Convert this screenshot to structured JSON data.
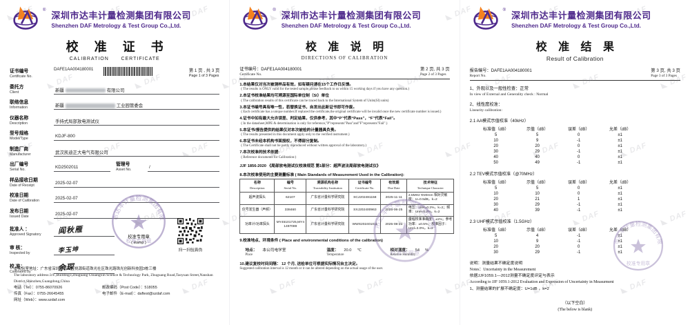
{
  "brand": {
    "company_cn": "深圳市达丰计量检测集团有限公司",
    "company_en": "Shenzhen DAF Metrology & Test Group Co.,Ltd.",
    "registered": "®",
    "brand_purple": "#4f2a8c",
    "brand_orange": "#f5821f"
  },
  "watermark": "◣ DAF",
  "stamp": {
    "ring_text": "深圳市达丰计量检测集团有限公司",
    "name": "校准专用章"
  },
  "page1": {
    "title_cn": "校 准 证 书",
    "title_en": "CALIBRATION      CERTIFICATE",
    "cert": {
      "label_cn": "证书编号",
      "label_en": "Certificate No.",
      "value": "DAFE1AA004180001"
    },
    "page_cn": "第 1 页 , 共 3 页",
    "page_en": "Page 1 of 3 Pages",
    "rows": {
      "client": {
        "label_cn": "委托方",
        "label_en": "Client",
        "prefix": "新疆",
        "suffix": "有限公司"
      },
      "info": {
        "label_cn": "联络信息",
        "label_en": "Information",
        "prefix": "新疆",
        "suffix": "工业园管委会"
      },
      "description": {
        "label_cn": "仪器名称",
        "label_en": "Description",
        "value": "手持式局部放电测试仪"
      },
      "model": {
        "label_cn": "型号规格",
        "label_en": "Model/Type",
        "value": "KDJF-800"
      },
      "manufacturer": {
        "label_cn": "制造厂商",
        "label_en": "Manufacturer",
        "value": "武汉凯迪正大电气有限公司"
      },
      "serial": {
        "label_cn": "出厂编号",
        "label_en": "Serial No.",
        "value": "KD2502011"
      },
      "asset": {
        "label_cn": "管理号",
        "label_en": "Asset No.",
        "value": "/"
      },
      "receipt": {
        "label_cn": "样品接收日期",
        "label_en": "Date of Receipt",
        "value": "2025-02-07"
      },
      "cal_date": {
        "label_cn": "校准日期",
        "label_en": "Date of Calibration",
        "value": "2025-02-07"
      },
      "issued": {
        "label_cn": "发布日期",
        "label_en": "Issued Date",
        "value": "2025-02-07"
      },
      "approved": {
        "label_cn": "批准人 ：",
        "label_en": "Approved Signatory",
        "signature": "阎秋雁"
      },
      "inspected": {
        "label_cn": "审 核：",
        "label_en": "Inspected by",
        "signature": "李玉坤"
      },
      "calibrated": {
        "label_cn": "校 准：",
        "label_en": "Calibrated by",
        "signature": "余琛"
      }
    },
    "stamp_label_cn": "校准专用章",
    "stamp_label_en": "( stamp )",
    "qr_caption": "扫一扫验真伪",
    "footer": {
      "addr_cn": "本实验室地址：广东省深圳市南山区桃源街道珠光社区珠光路珠光创新科技园3栋三楼",
      "addr_en": "The laboratory address:3/F.,Building3,Zhuguang Chuangxin Science & Technology Park, Zhuguang Road,Taoyuan Street,Nanshan District,Shenzhen,Guangdong,China",
      "tel": "电话（Tel）：0755-86070926",
      "post": "邮政编码（Post Code）：518055",
      "fax": "传真（Fax）：0755-26645455",
      "email": "电子邮件（E-mail）：daftest@szdaf.com",
      "web": "网址（Web）：www.szdaf.com"
    }
  },
  "page2": {
    "title_cn": "校 准 说 明",
    "title_en": "DIRECTIONS OF CALIBRATION",
    "cert_label_cn": "证书编号：",
    "cert_no": "DAFE1AA004180001",
    "cert_label_en": "Certificate No.",
    "page_cn": "第 2 页, 共 3 页",
    "page_en": "Page 2 of 3 Pages",
    "items": [
      {
        "cn": "1.本结果仅对当次被测样品有效，如有疑问请在15个工作日反馈。",
        "en": "( The results is ONLY valid for the tested sample,please feedback to us within 15 working days if you have any question.)"
      },
      {
        "cn": "2.本证书校准结果均可溯源至国际单位制（SI）单位",
        "en": "( The calibration results of this certificate can be traced back to the International System of Units(SI) units)"
      },
      {
        "cn": "3.本证书编号具有唯一性，若替换证书，自发出此新证书即可作废。",
        "en": "( Each certificate has a unique number.If replaced the certificate,the original certificate will be invalid once the new certificate number is issued.)"
      },
      {
        "cn": "4.证书中如有最大允许误差、判定结果，仅供参考，其中“P”代表“Pass”，“F”代表“Fail”。",
        "en": "( In the datasheet,MPE & determination is only for reference,\"P\"represents\"Pass\"and\"F\"represents\"Fail\".)"
      },
      {
        "cn": "5.本证书/报告提供的结果仅对本次被检的计量器具负责。",
        "en": "( The results presented in this document apply only to the verified instrument.)"
      },
      {
        "cn": "6.本证书未经本机构书面授权，不得部分复制。",
        "en": "( The Certificate shall not be partly reproduced without written approval of the laboratory.)"
      },
      {
        "cn": "7.本次校准的技术依据:",
        "en": "( Reference documents for Calibration:)"
      }
    ],
    "ref_doc": "JJF 1856-2020 《局部放电测试仪校准规范 第1部分：超声波法局部放电测试仪》",
    "standards": {
      "heading": "8.本次校准使用的主要测量标准 ( Main Standards of Measurement Used in the Calibration):",
      "headers": [
        {
          "cn": "名称",
          "en": "Description"
        },
        {
          "cn": "编号",
          "en": "Serial No."
        },
        {
          "cn": "溯源机构名称",
          "en": "Traceability Institution"
        },
        {
          "cn": "证书编号",
          "en": "Certificate No."
        },
        {
          "cn": "有效期",
          "en": "Due Date"
        },
        {
          "cn": "技术特征",
          "en": "Technique Character"
        }
      ],
      "rows": [
        [
          "超声波探头",
          "62107",
          "广东省计量科学研究院",
          "SCJ202481158",
          "2025-11-11",
          "2.5MHz Φ20mm 相对灵敏度：U=0.5dB，k=2"
        ],
        [
          "信号发生器（声频）",
          "338460",
          "广东省计量科学研究院",
          "SXJ202400963",
          "2025-06-25",
          "电压：Urel=0.2%，k=2；频率：Urel=0.2%，k=2"
        ],
        [
          "功率计/功率探头",
          "MY45101725,MY41497089",
          "广东省计量科学研究院",
          "WWS202401011",
          "2025-08-21",
          "量程校准准确度：±1%；参考功率：±0.5%；校准因子：Urel=3.0%，k=2"
        ]
      ]
    },
    "env": {
      "heading": "9.校准地点、环境条件 ( Place and environmental conditions of the calibration)",
      "place_cn": "地点：",
      "place": "本公司电学室",
      "place_en": "Place",
      "temp_cn": "温度：",
      "temp": "20.0",
      "temp_unit": "℃",
      "temp_en": "Temperature",
      "rh_cn": "相对湿度：",
      "rh": "54",
      "rh_unit": "%",
      "rh_en": "Relative Humidity"
    },
    "interval_cn": "10.建议复校时间间隔：  12  个月, 送检单位可根据实际情况自主决定。",
    "interval_en": "Suggested calibration interval is  12  month or it can be altered depending on the actual usage of the user."
  },
  "page3": {
    "title_cn": "校 准 结 果",
    "title_en": "Result of Calibration",
    "report_label_cn": "报告编号：",
    "report_no": "DAFE1AA004180001",
    "report_label_en": "Report No.",
    "page_cn": "第 3 页, 共 3 页",
    "page_en": "Page 3 of 3 Pages",
    "sec1_cn": "1、外观以及一般性检查：正常",
    "sec1_en": "In view of External and Generality check : Normal",
    "sec2_cn": "2、线性度校准：",
    "sec2_en": "Linearity calibration:",
    "cols": [
      "标准值（dB）",
      "示值（dB）",
      "误差（dB）",
      "允差（dB）"
    ],
    "tables": [
      {
        "title": "2.1 AA模式示值校准（40kHz）",
        "rows": [
          [
            "5",
            "5",
            "0",
            "±1"
          ],
          [
            "10",
            "9",
            "-1",
            "±1"
          ],
          [
            "20",
            "20",
            "0",
            "±1"
          ],
          [
            "30",
            "29",
            "-1",
            "±1"
          ],
          [
            "40",
            "40",
            "0",
            "±1"
          ],
          [
            "50",
            "49",
            "-1",
            "±1"
          ]
        ]
      },
      {
        "title": "2.2 TEV模式示值校准（@70MHz）",
        "rows": [
          [
            "5",
            "5",
            "0",
            "±1"
          ],
          [
            "10",
            "10",
            "0",
            "±1"
          ],
          [
            "20",
            "21",
            "1",
            "±1"
          ],
          [
            "30",
            "29",
            "-1",
            "±1"
          ],
          [
            "40",
            "39",
            "-1",
            "±1"
          ]
        ]
      },
      {
        "title": "2.3 UHF模式示值校准（1.5GHz）",
        "rows": [
          [
            "5",
            "4",
            "-1",
            "±1"
          ],
          [
            "10",
            "9",
            "-1",
            "±1"
          ],
          [
            "20",
            "20",
            "0",
            "±1"
          ],
          [
            "30",
            "29",
            "-1",
            "±1"
          ]
        ]
      }
    ],
    "notes_cn1": "说明：测量结果不确定度说明",
    "notes_en1": "Notes：Uncertainty in the Measurement",
    "notes_cn2": "依据JJF1059.1—2012测量不确定度评定与表示",
    "notes_en2": "According to JJF 1059.1-2012 Evaluation and Expression of Uncertainty in Measurment",
    "notes_u": "1、测量结果的扩展不确定度：U=1dB ，k=2",
    "blank_cn": "（以下空白）",
    "blank_en": "(The below is blank)"
  }
}
